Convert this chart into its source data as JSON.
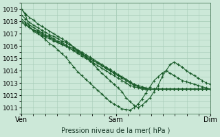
{
  "xlabel": "Pression niveau de la mer( hPa )",
  "bg_color": "#cce8d8",
  "grid_color": "#a8cdb8",
  "line_color": "#1a5c2a",
  "ylim": [
    1010.5,
    1019.5
  ],
  "figsize": [
    3.2,
    2.0
  ],
  "dpi": 100,
  "series": [
    [
      1019.0,
      1018.6,
      1018.3,
      1018.1,
      1017.8,
      1017.6,
      1017.4,
      1017.2,
      1017.0,
      1016.8,
      1016.6,
      1016.4,
      1016.2,
      1015.9,
      1015.6,
      1015.4,
      1015.1,
      1014.8,
      1014.5,
      1014.1,
      1013.8,
      1013.5,
      1013.2,
      1012.9,
      1012.6,
      1012.3,
      1011.8,
      1011.5,
      1011.2,
      1011.0,
      1011.2,
      1011.5,
      1011.8,
      1012.3,
      1012.8,
      1013.5,
      1014.0,
      1014.5,
      1014.7,
      1014.5,
      1014.3,
      1014.0,
      1013.8,
      1013.6,
      1013.4,
      1013.2,
      1013.0,
      1012.9
    ],
    [
      1018.5,
      1018.2,
      1017.9,
      1017.7,
      1017.5,
      1017.3,
      1017.1,
      1016.9,
      1016.8,
      1016.6,
      1016.4,
      1016.3,
      1016.1,
      1015.9,
      1015.7,
      1015.5,
      1015.3,
      1015.1,
      1014.9,
      1014.7,
      1014.5,
      1014.3,
      1014.1,
      1013.9,
      1013.7,
      1013.5,
      1013.3,
      1013.1,
      1012.9,
      1012.7,
      1012.6,
      1012.5,
      1012.5,
      1012.5,
      1012.5,
      1012.5,
      1012.5,
      1012.5,
      1012.5,
      1012.5,
      1012.5,
      1012.5,
      1012.5,
      1012.5,
      1012.5,
      1012.5,
      1012.5,
      1012.5
    ],
    [
      1018.2,
      1017.9,
      1017.7,
      1017.5,
      1017.3,
      1017.1,
      1016.9,
      1016.8,
      1016.6,
      1016.4,
      1016.3,
      1016.1,
      1015.9,
      1015.8,
      1015.6,
      1015.4,
      1015.2,
      1015.0,
      1014.8,
      1014.6,
      1014.4,
      1014.2,
      1014.0,
      1013.8,
      1013.6,
      1013.4,
      1013.2,
      1013.0,
      1012.8,
      1012.7,
      1012.6,
      1012.5,
      1012.5,
      1012.5,
      1012.5,
      1012.5,
      1012.5,
      1012.5,
      1012.5,
      1012.5,
      1012.5,
      1012.5,
      1012.5,
      1012.5,
      1012.5,
      1012.5,
      1012.5,
      1012.5
    ],
    [
      1017.9,
      1017.7,
      1017.5,
      1017.3,
      1017.1,
      1016.9,
      1016.7,
      1016.6,
      1016.4,
      1016.3,
      1016.1,
      1016.0,
      1015.8,
      1015.6,
      1015.4,
      1015.2,
      1015.0,
      1014.8,
      1014.6,
      1014.4,
      1014.2,
      1014.0,
      1013.8,
      1013.6,
      1013.4,
      1013.2,
      1013.0,
      1012.8,
      1012.7,
      1012.6,
      1012.5,
      1012.5,
      1012.5,
      1012.5,
      1012.5,
      1012.5,
      1012.5,
      1012.5,
      1012.5,
      1012.5,
      1012.5,
      1012.5,
      1012.5,
      1012.5,
      1012.5,
      1012.5,
      1012.5,
      1012.5
    ],
    [
      1018.0,
      1017.8,
      1017.5,
      1017.3,
      1017.2,
      1017.0,
      1016.8,
      1016.7,
      1016.5,
      1016.3,
      1016.2,
      1016.0,
      1015.8,
      1015.7,
      1015.5,
      1015.3,
      1015.1,
      1014.9,
      1014.8,
      1014.6,
      1014.4,
      1014.2,
      1014.0,
      1013.8,
      1013.6,
      1013.5,
      1013.3,
      1013.1,
      1012.9,
      1012.8,
      1012.7,
      1012.6,
      1012.5,
      1012.5,
      1012.5,
      1012.5,
      1012.5,
      1012.5,
      1012.5,
      1012.5,
      1012.5,
      1012.5,
      1012.5,
      1012.5,
      1012.5,
      1012.5,
      1012.5,
      1012.5
    ]
  ],
  "series_low": [
    [
      1019.0,
      1018.5,
      1017.5,
      1017.2,
      1017.0,
      1016.8,
      1016.5,
      1016.2,
      1016.0,
      1015.7,
      1015.4,
      1015.1,
      1014.7,
      1014.3,
      1013.9,
      1013.6,
      1013.3,
      1013.0,
      1012.7,
      1012.4,
      1012.1,
      1011.8,
      1011.5,
      1011.3,
      1011.1,
      1010.9,
      1010.85,
      1010.8,
      1011.0,
      1011.3,
      1011.7,
      1012.2,
      1012.7,
      1013.2,
      1013.5,
      1013.8,
      1014.0,
      1013.8,
      1013.6,
      1013.4,
      1013.2,
      1013.1,
      1013.0,
      1012.9,
      1012.8,
      1012.7,
      1012.6,
      1012.5
    ]
  ]
}
